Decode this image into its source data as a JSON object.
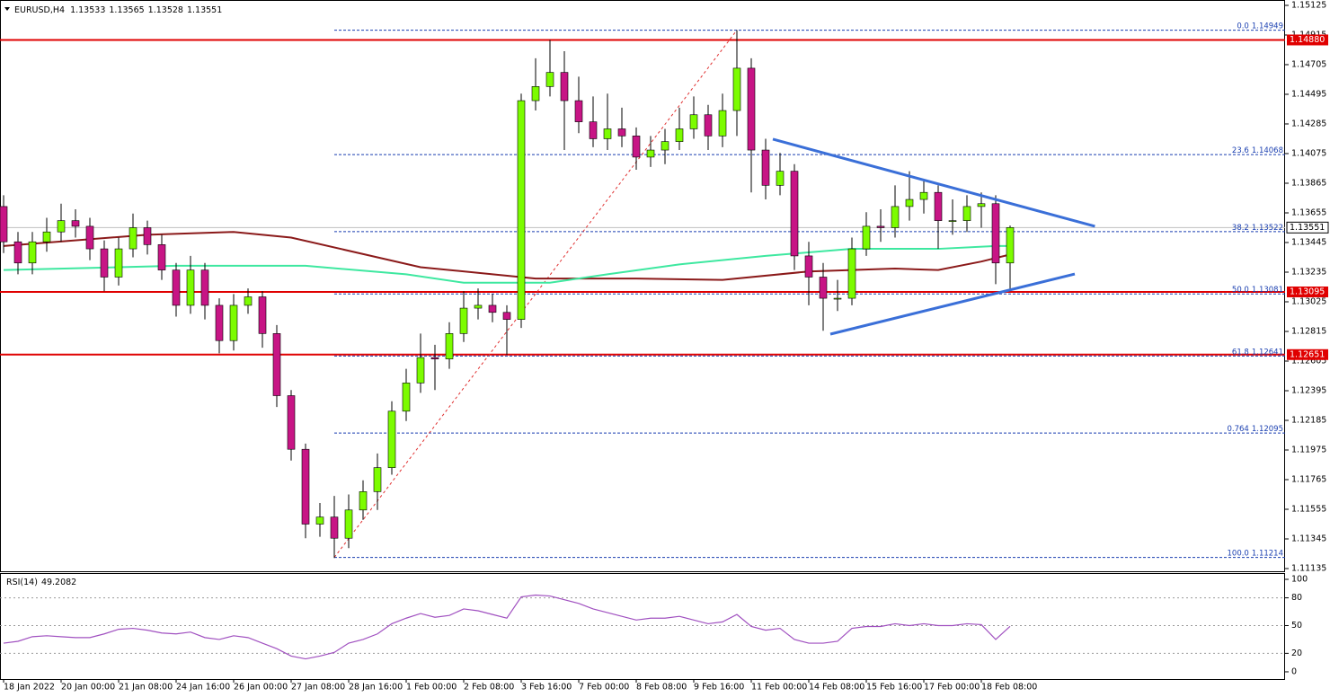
{
  "chart_data": [
    {
      "type": "candlestick",
      "title": "EURUSD,H4",
      "ohlc": [
        1.13533,
        1.13565,
        1.13528,
        1.13551
      ],
      "categories": [
        "18 Jan 2022",
        null,
        null,
        null,
        "20 Jan 00:00",
        null,
        null,
        null,
        "21 Jan 08:00",
        null,
        null,
        null,
        "24 Jan 16:00",
        null,
        null,
        null,
        "26 Jan 00:00",
        null,
        null,
        null,
        "27 Jan 08:00",
        null,
        null,
        null,
        "28 Jan 16:00",
        null,
        null,
        null,
        "1 Feb 00:00",
        null,
        null,
        null,
        "2 Feb 08:00",
        null,
        null,
        null,
        "3 Feb 16:00",
        null,
        null,
        null,
        "7 Feb 00:00",
        null,
        null,
        null,
        "8 Feb 08:00",
        null,
        null,
        null,
        "9 Feb 16:00",
        null,
        null,
        null,
        "11 Feb 00:00",
        null,
        null,
        null,
        "14 Feb 08:00",
        null,
        null,
        null,
        "15 Feb 16:00",
        null,
        null,
        null,
        "17 Feb 00:00",
        null,
        null,
        null,
        "18 Feb 08:00",
        null,
        null
      ],
      "open": [
        1.137,
        1.1345,
        1.133,
        1.1345,
        1.1352,
        1.136,
        1.1356,
        1.134,
        1.132,
        1.134,
        1.1355,
        1.1343,
        1.1325,
        1.13,
        1.1325,
        1.13,
        1.1275,
        1.13,
        1.1306,
        1.128,
        1.1236,
        1.1198,
        1.1145,
        1.115,
        1.1135,
        1.1155,
        1.1168,
        1.1185,
        1.1225,
        1.1245,
        1.1263,
        1.1262,
        1.128,
        1.1298,
        1.13,
        1.1295,
        1.129,
        1.1445,
        1.1455,
        1.1465,
        1.1445,
        1.143,
        1.1418,
        1.1425,
        1.142,
        1.1405,
        1.141,
        1.1416,
        1.1425,
        1.1435,
        1.142,
        1.1438,
        1.1468,
        1.141,
        1.1385,
        1.1395,
        1.1335,
        1.132,
        1.1305,
        1.1305,
        1.134,
        1.1356,
        1.1355,
        1.137,
        1.1375,
        1.138,
        1.136,
        1.136,
        1.137,
        1.1372,
        1.133
      ],
      "high": [
        1.1378,
        1.1352,
        1.1352,
        1.1362,
        1.1372,
        1.1368,
        1.1362,
        1.1346,
        1.1348,
        1.1365,
        1.136,
        1.135,
        1.133,
        1.1335,
        1.133,
        1.1305,
        1.1308,
        1.1312,
        1.131,
        1.1286,
        1.124,
        1.1202,
        1.116,
        1.1165,
        1.1166,
        1.1176,
        1.1195,
        1.1232,
        1.1255,
        1.128,
        1.1272,
        1.1288,
        1.131,
        1.1312,
        1.1308,
        1.13,
        1.145,
        1.1475,
        1.1488,
        1.148,
        1.1462,
        1.1448,
        1.145,
        1.144,
        1.1426,
        1.142,
        1.1425,
        1.144,
        1.1448,
        1.1442,
        1.145,
        1.1495,
        1.1475,
        1.1418,
        1.1408,
        1.14,
        1.1345,
        1.133,
        1.1318,
        1.1348,
        1.1366,
        1.1368,
        1.1385,
        1.1395,
        1.1388,
        1.1385,
        1.1375,
        1.1378,
        1.138,
        1.1378,
        1.13565
      ],
      "low": [
        1.1337,
        1.1322,
        1.1322,
        1.1338,
        1.1345,
        1.1348,
        1.1332,
        1.131,
        1.1314,
        1.1334,
        1.1336,
        1.1318,
        1.1292,
        1.1294,
        1.129,
        1.1266,
        1.1268,
        1.1294,
        1.127,
        1.1228,
        1.119,
        1.1135,
        1.1136,
        1.1121,
        1.1128,
        1.1148,
        1.1155,
        1.118,
        1.1218,
        1.1238,
        1.124,
        1.1255,
        1.1274,
        1.129,
        1.1288,
        1.1265,
        1.1284,
        1.1438,
        1.1448,
        1.141,
        1.1422,
        1.1412,
        1.141,
        1.1412,
        1.1396,
        1.1398,
        1.14,
        1.141,
        1.1418,
        1.141,
        1.1412,
        1.142,
        1.138,
        1.1375,
        1.1378,
        1.1325,
        1.13,
        1.1282,
        1.1296,
        1.13,
        1.1335,
        1.1345,
        1.1348,
        1.136,
        1.1365,
        1.134,
        1.135,
        1.1352,
        1.1355,
        1.1315,
        1.131
      ],
      "close": [
        1.1345,
        1.133,
        1.1345,
        1.1352,
        1.136,
        1.1356,
        1.134,
        1.132,
        1.134,
        1.1355,
        1.1343,
        1.1325,
        1.13,
        1.1325,
        1.13,
        1.1275,
        1.13,
        1.1306,
        1.128,
        1.1236,
        1.1198,
        1.1145,
        1.115,
        1.1135,
        1.1155,
        1.1168,
        1.1185,
        1.1225,
        1.1245,
        1.1263,
        1.1262,
        1.128,
        1.1298,
        1.13,
        1.1295,
        1.129,
        1.1445,
        1.1455,
        1.1465,
        1.1445,
        1.143,
        1.1418,
        1.1425,
        1.142,
        1.1405,
        1.141,
        1.1416,
        1.1425,
        1.1435,
        1.142,
        1.1438,
        1.1468,
        1.141,
        1.1385,
        1.1395,
        1.1335,
        1.132,
        1.1305,
        1.1305,
        1.134,
        1.1356,
        1.1355,
        1.137,
        1.1375,
        1.138,
        1.136,
        1.136,
        1.137,
        1.1372,
        1.133,
        1.13551
      ],
      "up_color": "#7cfc00",
      "down_color": "#c71585",
      "ylim": [
        1.11116,
        1.15163
      ],
      "yticks": [
        1.15125,
        1.14915,
        1.14705,
        1.14495,
        1.14285,
        1.14075,
        1.13865,
        1.13655,
        1.13445,
        1.13235,
        1.13025,
        1.12815,
        1.12605,
        1.12395,
        1.12185,
        1.11975,
        1.11765,
        1.11555,
        1.11345,
        1.11135
      ],
      "series": [
        {
          "color": "#8b1a1a",
          "x": [
            0,
            10,
            16,
            20,
            29,
            37,
            44,
            50,
            56,
            62,
            65,
            68,
            70
          ],
          "values": [
            1.1342,
            1.135,
            1.1352,
            1.1348,
            1.1327,
            1.1319,
            1.1319,
            1.1318,
            1.1324,
            1.1326,
            1.1325,
            1.1331,
            1.1336
          ]
        },
        {
          "color": "#3ee8a0",
          "x": [
            0,
            12,
            21,
            28,
            32,
            38,
            42,
            47,
            53,
            59,
            65,
            69,
            70
          ],
          "values": [
            1.1325,
            1.1328,
            1.1328,
            1.1322,
            1.1316,
            1.1316,
            1.1322,
            1.1329,
            1.1335,
            1.134,
            1.134,
            1.1342,
            1.1342
          ]
        }
      ],
      "levels_color": "#e00000",
      "levels": [
        {
          "value": 1.1488,
          "label": "1.14880"
        },
        1.13095,
        1.12651
      ],
      "last": 1.13551,
      "fibonacci": {
        "color": "#1a3fb0",
        "trend_color": "#e03030",
        "x": [
          23,
          51
        ],
        "values": [
          1.11214,
          1.14949
        ],
        "levels": [
          {
            "level": "0.0",
            "value": 1.14949
          },
          {
            "level": "23.6",
            "value": 1.14068
          },
          {
            "level": "38.2",
            "value": 1.13522
          },
          {
            "level": "50.0",
            "value": 1.13081
          },
          {
            "level": "61.8",
            "value": 1.12641
          },
          {
            "level": "0.764",
            "value": 1.12095
          },
          {
            "level": "100.0",
            "value": 1.11214
          }
        ]
      },
      "trendlines": [
        {
          "color": "#3a6fd8",
          "x": [
            53.5,
            75.9
          ],
          "values": [
            1.14177,
            1.1356
          ]
        },
        {
          "color": "#3a6fd8",
          "x": [
            57.5,
            74.5
          ],
          "values": [
            1.12796,
            1.13222
          ]
        }
      ]
    },
    {
      "type": "line",
      "title": "RSI(14)",
      "color": "#a050c0",
      "values": [
        31,
        33,
        38,
        39,
        38,
        37,
        37,
        41,
        46,
        47,
        45,
        42,
        41,
        43,
        37,
        35,
        39,
        37,
        31,
        25,
        17,
        14,
        17,
        21,
        31,
        35,
        41,
        52,
        58,
        63,
        59,
        61,
        68,
        66,
        62,
        58,
        81,
        83,
        82,
        78,
        74,
        68,
        64,
        60,
        56,
        58,
        58,
        60,
        56,
        52,
        54,
        62,
        49,
        45,
        47,
        35,
        31,
        31,
        33,
        47,
        49,
        49,
        52,
        50,
        52,
        50,
        50,
        52,
        51,
        35,
        49.2082
      ],
      "ylim": [
        -7.8,
        106.8
      ],
      "yticks": [
        100,
        80,
        50,
        20,
        0
      ],
      "grid_at": [
        80,
        50,
        20
      ]
    }
  ]
}
